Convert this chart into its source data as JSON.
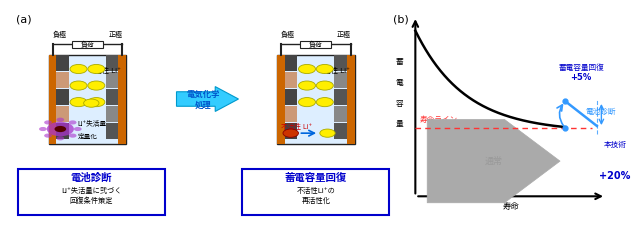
{
  "title_a": "(a)",
  "title_b": "(b)",
  "label_fukukyoku": "負極",
  "label_fukaQ": "負荷",
  "label_seikyoku": "正極",
  "label_kassei": "活性 Li⁺",
  "label_denchi_shindan": "電池診断",
  "label_denchi_shindan_sub1": "Li⁺失活量に弐づく",
  "label_denchi_shindan_sub2": "回復条件策定",
  "label_chikudenki_kaifuku": "蓄電容量回復",
  "label_chikudenki_kaifuku_sub1": "不活性Li⁺の",
  "label_chikudenki_kaifuku_sub2": "再活性化",
  "label_fukatsusei": "不活性 Li⁺",
  "label_li_shitsuryo1": "Li⁺失活量",
  "label_li_shitsuryo2": "定量化",
  "label_denki_kagaku1": "電気化学",
  "label_denki_kagaku2": "処理",
  "label_jumyo_line": "寿命ライン",
  "label_tsujyo": "通常",
  "label_hon_gijutsu": "本技術",
  "label_jumyo": "寿命",
  "label_chikuden_kaifuku_top": "蓄電容量回復",
  "label_plus5": "+5%",
  "label_plus20": "+20%",
  "label_denchi_shindan2": "電池診断",
  "label_chikuden_yoko1": "蓄",
  "label_chikuden_yoko2": "電",
  "label_chikuden_yoko3": "容",
  "label_chikuden_yoko4": "量",
  "bg_color": "#ffffff",
  "battery_bg": "#ddeeff",
  "battery_border": "#222222",
  "electrode_color": "#cc6600",
  "li_yellow": "#ffee00",
  "li_border": "#aaaa00",
  "life_line_color": "#ff3333",
  "box_border_blue": "#0000cc",
  "text_blue_dark": "#0000cc",
  "text_blue": "#0055cc",
  "text_red": "#cc0000",
  "text_cyan": "#0099cc"
}
